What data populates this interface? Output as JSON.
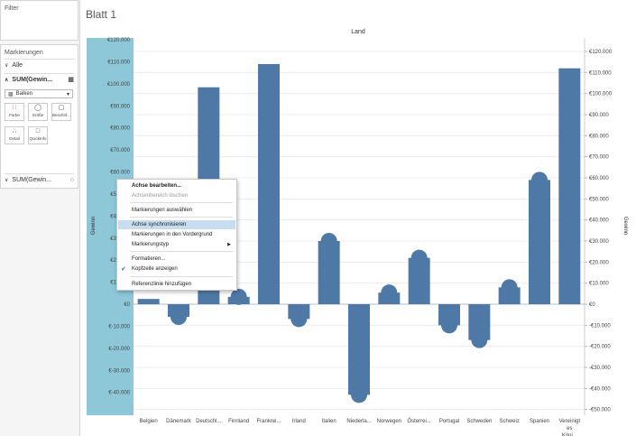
{
  "sidebar": {
    "filter_title": "Filter",
    "marks_title": "Markierungen",
    "all_label": "Alle",
    "sum_label": "SUM(Gewin...",
    "mark_type": "Balken",
    "cards": [
      "Farbe",
      "Größe",
      "Beschrif...",
      "Detail",
      "QuickInfo"
    ],
    "sum2_label": "SUM(Gewin..."
  },
  "sheet_title": "Blatt 1",
  "context_menu": {
    "items": [
      {
        "label": "Achse bearbeiten...",
        "style": "bold"
      },
      {
        "label": "Achsenbereich löschen",
        "style": "disabled"
      },
      {
        "label": "Markierungen auswählen",
        "style": "normal"
      },
      {
        "label": "Achse synchronisieren",
        "style": "highlighted"
      },
      {
        "label": "Markierungen in den Vordergrund",
        "style": "normal"
      },
      {
        "label": "Markierungstyp",
        "style": "submenu"
      },
      {
        "label": "Formatieren...",
        "style": "normal"
      },
      {
        "label": "Kopfzeile anzeigen",
        "style": "checked"
      },
      {
        "label": "Referenzlinie hinzufügen",
        "style": "normal"
      }
    ]
  },
  "chart_data": {
    "type": "bar",
    "title": "Land",
    "ylabel": "Gewinn",
    "ylabel_right": "Gewinn",
    "categories": [
      "Belgien",
      "Dänemark",
      "Deutschl...",
      "Finnland",
      "Frankrei...",
      "Irland",
      "Italien",
      "Niederla...",
      "Norwegen",
      "Österrei...",
      "Portugal",
      "Schweden",
      "Schweiz",
      "Spanien",
      "Vereinigt es Köni..."
    ],
    "values": [
      2500,
      -6000,
      103000,
      3500,
      114000,
      -7000,
      30000,
      -43000,
      5500,
      22000,
      -10000,
      -17000,
      8000,
      59000,
      112000
    ],
    "circles": [
      0,
      -6000,
      0,
      3500,
      0,
      -7000,
      30000,
      -43000,
      5500,
      22000,
      -10000,
      -17000,
      8000,
      59000,
      0
    ],
    "ylim_left": [
      -50000,
      120000
    ],
    "left_ticks": [
      120000,
      110000,
      100000,
      90000,
      80000,
      70000,
      60000,
      50000,
      40000,
      30000,
      20000,
      10000,
      0,
      -10000,
      -20000,
      -30000,
      -40000
    ],
    "left_tick_labels": [
      "€120.000",
      "€110.000",
      "€100.000",
      "€90.000",
      "€80.000",
      "€70.000",
      "€60.000",
      "€50.000",
      "€40.000",
      "€30.000",
      "€20.000",
      "€10.000",
      "€0",
      "€-10.000",
      "€-20.000",
      "€-30.000",
      "€-40.000"
    ],
    "right_ticks": [
      120000,
      110000,
      100000,
      90000,
      80000,
      70000,
      60000,
      50000,
      40000,
      30000,
      20000,
      10000,
      0,
      -10000,
      -20000,
      -30000,
      -40000,
      -50000
    ],
    "right_tick_labels": [
      "€120.000",
      "€110.000",
      "€100.000",
      "€90.000",
      "€80.000",
      "€70.000",
      "€60.000",
      "€50.000",
      "€40.000",
      "€30.000",
      "€20.000",
      "€10.000",
      "€0",
      "-€10.000",
      "-€20.000",
      "-€30.000",
      "-€40.000",
      "-€50.000"
    ],
    "grid": true,
    "colors": {
      "bar": "#4e79a7",
      "axis_highlight": "#8ec7d8"
    }
  }
}
